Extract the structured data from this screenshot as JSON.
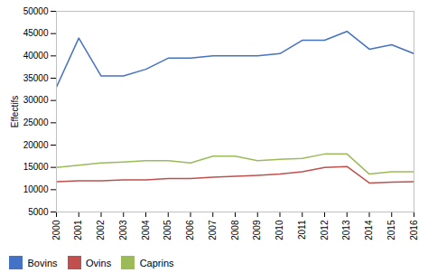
{
  "chart_data": {
    "type": "line",
    "x": [
      2000,
      2001,
      2002,
      2003,
      2004,
      2005,
      2006,
      2007,
      2008,
      2009,
      2010,
      2011,
      2012,
      2013,
      2014,
      2015,
      2016
    ],
    "series": [
      {
        "name": "Bovins",
        "color": "#4472C4",
        "values": [
          33000,
          44000,
          35500,
          35500,
          37000,
          39500,
          39500,
          40000,
          40000,
          40000,
          40500,
          43500,
          43500,
          45500,
          41500,
          42500,
          40500
        ]
      },
      {
        "name": "Ovins",
        "color": "#C0504D",
        "values": [
          11800,
          12000,
          12000,
          12200,
          12200,
          12500,
          12500,
          12800,
          13000,
          13200,
          13500,
          14000,
          15000,
          15200,
          11500,
          11700,
          11800
        ]
      },
      {
        "name": "Caprins",
        "color": "#9BBB59",
        "values": [
          15000,
          15500,
          16000,
          16200,
          16500,
          16500,
          16000,
          17500,
          17500,
          16500,
          16800,
          17000,
          18000,
          18000,
          13500,
          14000,
          14000
        ]
      }
    ],
    "ylabel": "Effectifs",
    "xlim": [
      2000,
      2016
    ],
    "xticks": [
      2000,
      2001,
      2002,
      2003,
      2004,
      2005,
      2006,
      2007,
      2008,
      2009,
      2010,
      2011,
      2012,
      2013,
      2014,
      2015,
      2016
    ],
    "ylim": [
      5000,
      50000
    ],
    "yticks": [
      5000,
      10000,
      15000,
      20000,
      25000,
      30000,
      35000,
      40000,
      45000,
      50000
    ],
    "grid": false,
    "legend": "bottom"
  }
}
